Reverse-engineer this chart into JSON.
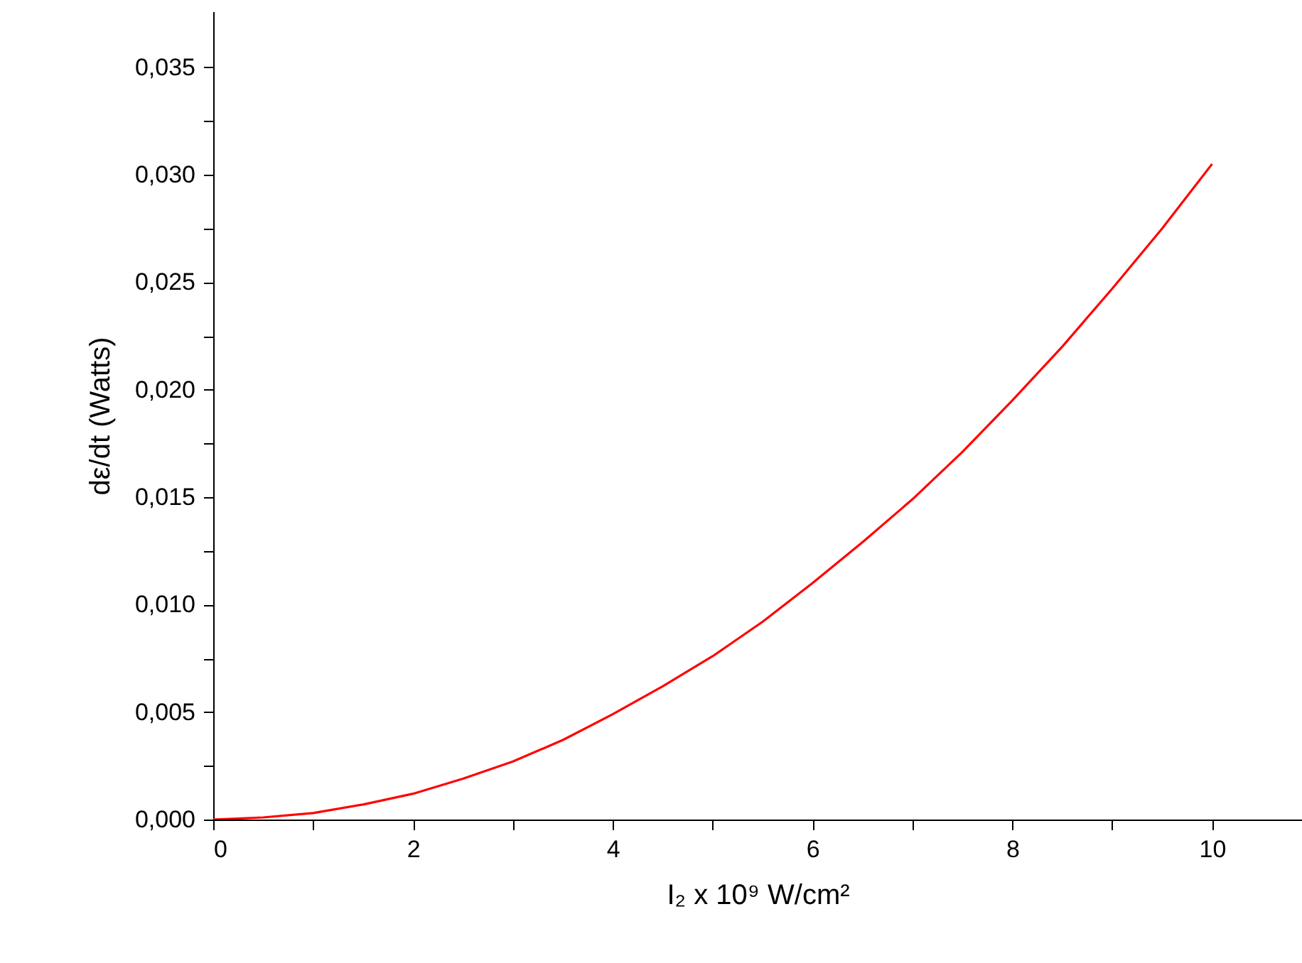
{
  "chart_data": {
    "type": "line",
    "xlabel": "I₂ x 10⁹ W/cm²",
    "ylabel": "dε/dt (Watts)",
    "x": [
      0,
      0.5,
      1,
      1.5,
      2,
      2.5,
      3,
      3.5,
      4,
      4.5,
      5,
      5.5,
      6,
      6.5,
      7,
      7.5,
      8,
      8.5,
      9,
      9.5,
      10
    ],
    "series": [
      {
        "color": "#ff0000",
        "values": [
          0,
          0.0001,
          0.0003,
          0.0007,
          0.0012,
          0.0019,
          0.0027,
          0.0037,
          0.0049,
          0.0062,
          0.0076,
          0.0092,
          0.011,
          0.0129,
          0.0149,
          0.0171,
          0.0195,
          0.022,
          0.0247,
          0.0275,
          0.0305
        ]
      }
    ],
    "xlim": [
      0,
      10.9
    ],
    "ylim": [
      0,
      0.0376
    ],
    "xticks": [
      0,
      {
        "value": 1,
        "label": null
      },
      2,
      {
        "value": 3,
        "label": null
      },
      4,
      {
        "value": 5,
        "label": null
      },
      6,
      {
        "value": 7,
        "label": null
      },
      8,
      {
        "value": 9,
        "label": null
      },
      10
    ],
    "yticks": [
      {
        "value": 0,
        "label": "0,000"
      },
      {
        "value": 0.0025,
        "label": null
      },
      {
        "value": 0.005,
        "label": "0,005"
      },
      {
        "value": 0.0075,
        "label": null
      },
      {
        "value": 0.01,
        "label": "0,010"
      },
      {
        "value": 0.0125,
        "label": null
      },
      {
        "value": 0.015,
        "label": "0,015"
      },
      {
        "value": 0.0175,
        "label": null
      },
      {
        "value": 0.02,
        "label": "0,020"
      },
      {
        "value": 0.0225,
        "label": null
      },
      {
        "value": 0.025,
        "label": "0,025"
      },
      {
        "value": 0.0275,
        "label": null
      },
      {
        "value": 0.03,
        "label": "0,030"
      },
      {
        "value": 0.0325,
        "label": null
      },
      {
        "value": 0.035,
        "label": "0,035"
      }
    ],
    "grid": false,
    "marker": "none",
    "line_style": "solid"
  }
}
